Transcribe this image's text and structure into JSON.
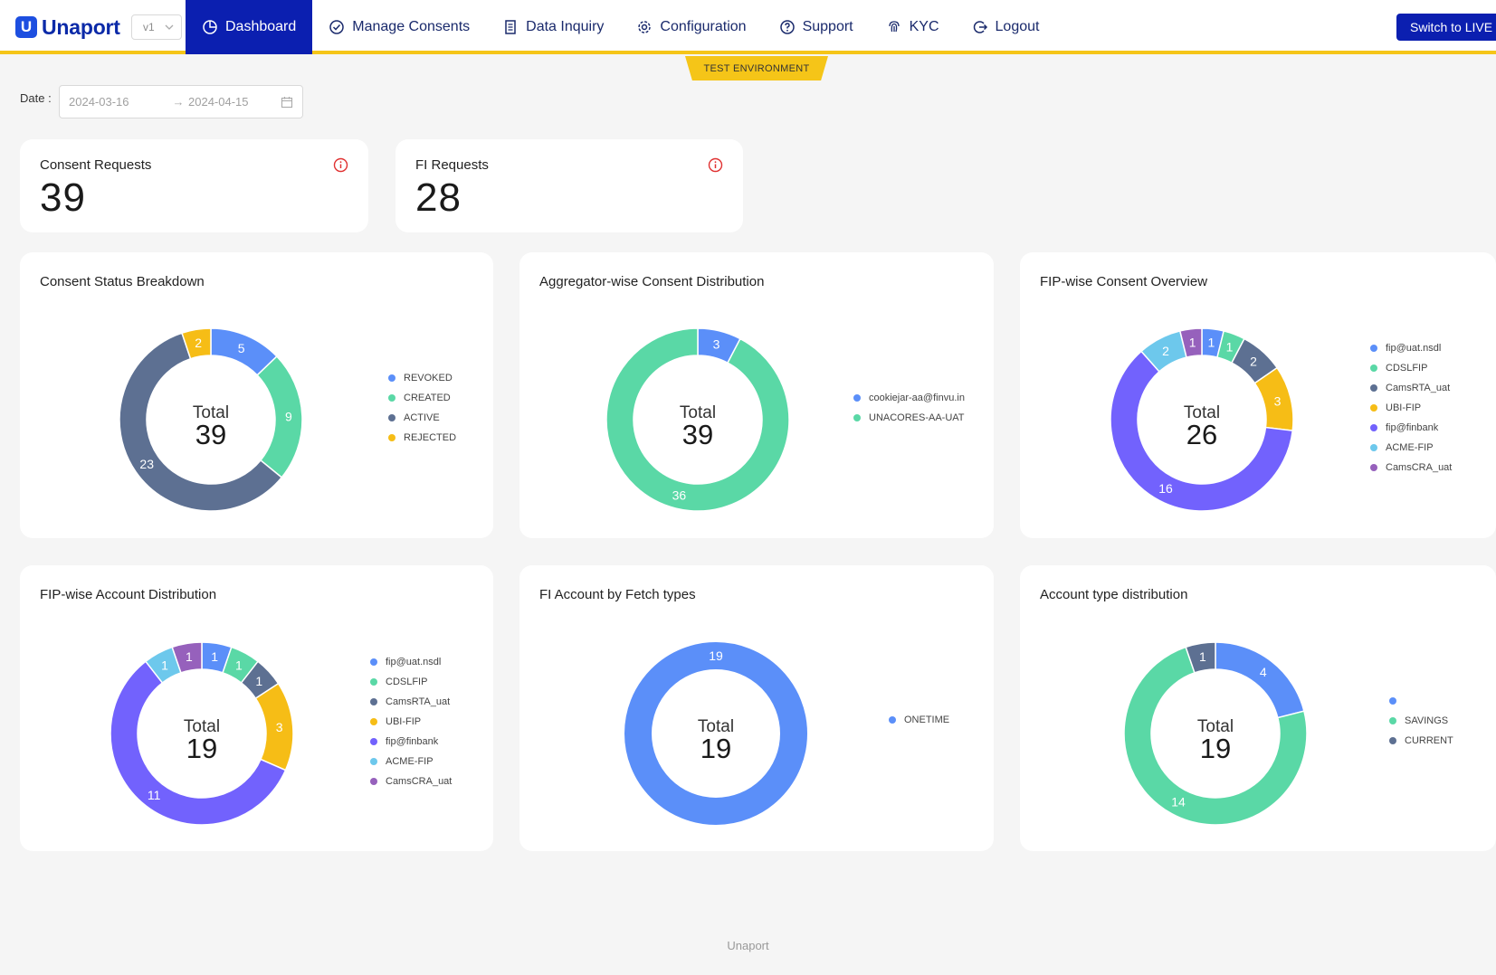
{
  "header": {
    "logo_text": "Unaport",
    "logo_mark": "U",
    "version": "v1",
    "nav": [
      {
        "label": "Dashboard",
        "icon": "pie-chart-icon",
        "active": true
      },
      {
        "label": "Manage Consents",
        "icon": "check-circle-icon"
      },
      {
        "label": "Data Inquiry",
        "icon": "document-icon"
      },
      {
        "label": "Configuration",
        "icon": "gear-icon"
      },
      {
        "label": "Support",
        "icon": "help-icon"
      },
      {
        "label": "KYC",
        "icon": "fingerprint-icon"
      },
      {
        "label": "Logout",
        "icon": "logout-icon"
      }
    ],
    "switch_live_label": "Switch to LIVE",
    "environment_label": "TEST ENVIRONMENT"
  },
  "filters": {
    "date_label": "Date :",
    "start_date": "2024-03-16",
    "end_date": "2024-04-15",
    "arrow": "→"
  },
  "stats": [
    {
      "title": "Consent Requests",
      "value": "39"
    },
    {
      "title": "FI Requests",
      "value": "28"
    }
  ],
  "total_label": "Total",
  "colors": {
    "accent": "#0b1fb0",
    "env": "#f5c518",
    "info": "#e03131"
  },
  "chart_data": [
    {
      "type": "pie",
      "title": "Consent Status Breakdown",
      "total": 39,
      "slices": [
        {
          "name": "REVOKED",
          "value": 5,
          "color": "#5b8ff9"
        },
        {
          "name": "CREATED",
          "value": 9,
          "color": "#5ad8a6"
        },
        {
          "name": "ACTIVE",
          "value": 23,
          "color": "#5d7092"
        },
        {
          "name": "REJECTED",
          "value": 2,
          "color": "#f6bd16"
        }
      ],
      "legend": "right"
    },
    {
      "type": "pie",
      "title": "Aggregator-wise Consent Distribution",
      "total": 39,
      "slices": [
        {
          "name": "cookiejar-aa@finvu.in",
          "value": 3,
          "color": "#5b8ff9"
        },
        {
          "name": "UNACORES-AA-UAT",
          "value": 36,
          "color": "#5ad8a6"
        }
      ],
      "legend": "right"
    },
    {
      "type": "pie",
      "title": "FIP-wise Consent Overview",
      "total": 26,
      "slices": [
        {
          "name": "fip@uat.nsdl",
          "value": 1,
          "color": "#5b8ff9"
        },
        {
          "name": "CDSLFIP",
          "value": 1,
          "color": "#5ad8a6"
        },
        {
          "name": "CamsRTA_uat",
          "value": 2,
          "color": "#5d7092"
        },
        {
          "name": "UBI-FIP",
          "value": 3,
          "color": "#f6bd16"
        },
        {
          "name": "fip@finbank",
          "value": 16,
          "color": "#7262fd"
        },
        {
          "name": "ACME-FIP",
          "value": 2,
          "color": "#6dc8ec"
        },
        {
          "name": "CamsCRA_uat",
          "value": 1,
          "color": "#9661bc"
        }
      ],
      "legend": "right"
    },
    {
      "type": "pie",
      "title": "FIP-wise Account Distribution",
      "total": 19,
      "slices": [
        {
          "name": "fip@uat.nsdl",
          "value": 1,
          "color": "#5b8ff9"
        },
        {
          "name": "CDSLFIP",
          "value": 1,
          "color": "#5ad8a6"
        },
        {
          "name": "CamsRTA_uat",
          "value": 1,
          "color": "#5d7092"
        },
        {
          "name": "UBI-FIP",
          "value": 3,
          "color": "#f6bd16"
        },
        {
          "name": "fip@finbank",
          "value": 11,
          "color": "#7262fd"
        },
        {
          "name": "ACME-FIP",
          "value": 1,
          "color": "#6dc8ec"
        },
        {
          "name": "CamsCRA_uat",
          "value": 1,
          "color": "#9661bc"
        }
      ],
      "legend": "right"
    },
    {
      "type": "pie",
      "title": "FI Account by Fetch types",
      "total": 19,
      "slices": [
        {
          "name": "ONETIME",
          "value": 19,
          "color": "#5b8ff9"
        }
      ],
      "legend": "right"
    },
    {
      "type": "pie",
      "title": "Account type distribution",
      "total": 19,
      "slices": [
        {
          "name": "",
          "value": 4,
          "color": "#5b8ff9"
        },
        {
          "name": "SAVINGS",
          "value": 14,
          "color": "#5ad8a6"
        },
        {
          "name": "CURRENT",
          "value": 1,
          "color": "#5d7092"
        }
      ],
      "legend": "right"
    }
  ],
  "footer": "Unaport"
}
